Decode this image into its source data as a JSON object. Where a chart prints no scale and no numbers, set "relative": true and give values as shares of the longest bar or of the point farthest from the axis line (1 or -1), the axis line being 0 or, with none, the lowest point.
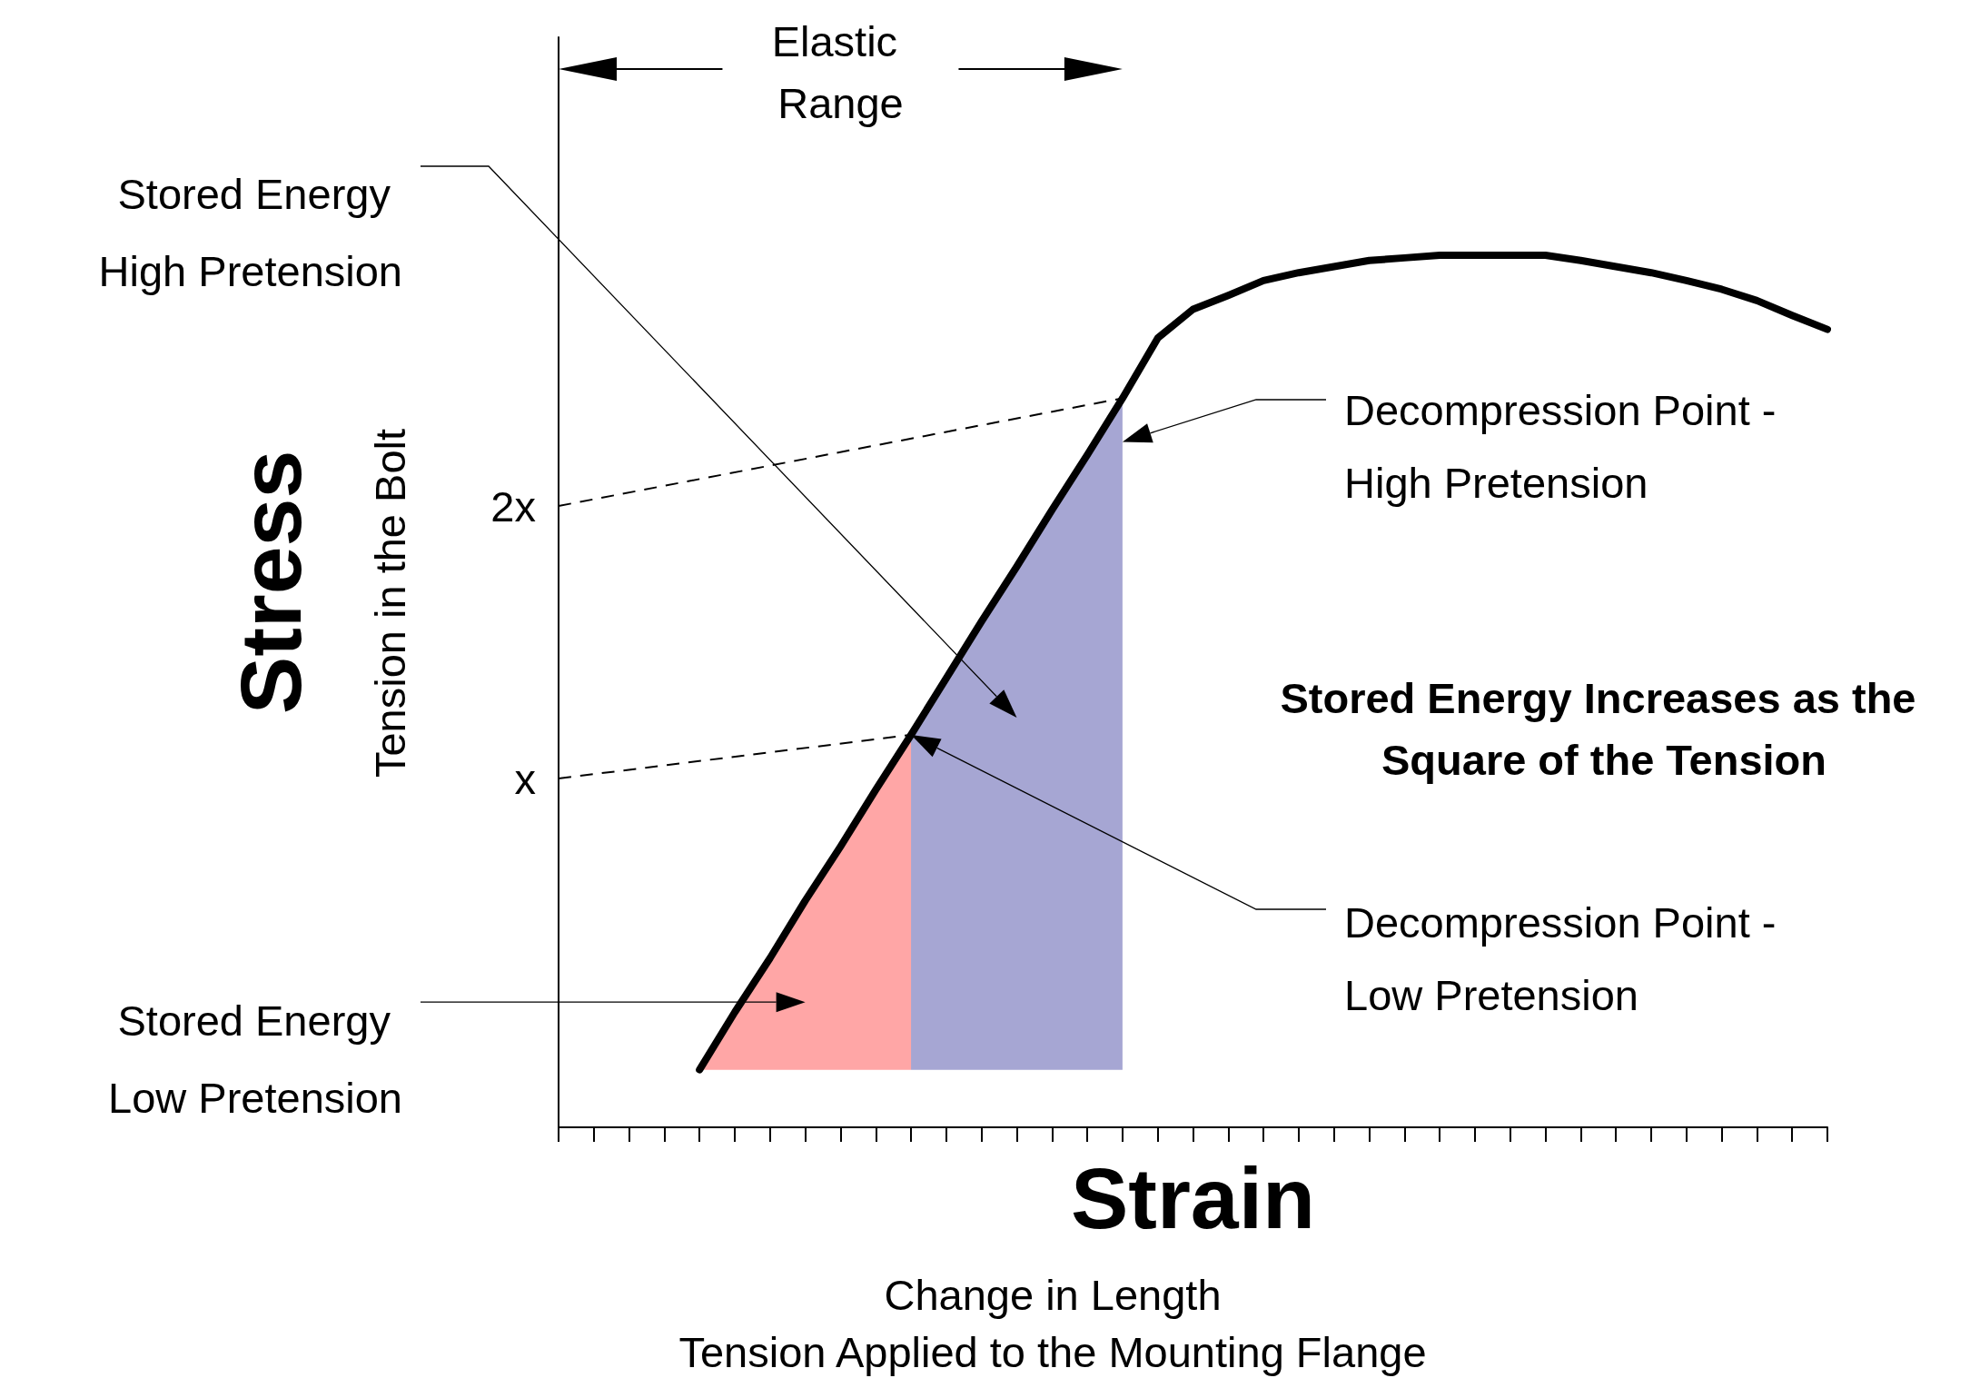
{
  "chart_data": {
    "type": "line",
    "xlabel": "Strain",
    "ylabel": "Stress",
    "relative": true,
    "categories": [
      null,
      null,
      null,
      null,
      null,
      null,
      null,
      null,
      null,
      null,
      null,
      null,
      null,
      null,
      null,
      null,
      null,
      null,
      null,
      null,
      null,
      null,
      null,
      null,
      null,
      null,
      null,
      null,
      null,
      null,
      null,
      null,
      null,
      null,
      null,
      null,
      null
    ],
    "grid": false,
    "series": [
      {
        "type": "area",
        "color": "#ff0000",
        "values": [
          null,
          null,
          null,
          null,
          0.066,
          0.132,
          0.194,
          0.26,
          0.322,
          0.387,
          0.45,
          null,
          null,
          null,
          null,
          null,
          null,
          null,
          null,
          null,
          null,
          null,
          null,
          null,
          null,
          null,
          null,
          null,
          null,
          null,
          null,
          null,
          null,
          null,
          null,
          null,
          null
        ]
      },
      {
        "type": "area",
        "color": "#000080",
        "values": [
          null,
          null,
          null,
          null,
          null,
          null,
          null,
          null,
          null,
          null,
          0.45,
          0.515,
          0.58,
          0.643,
          0.708,
          0.771,
          0.836,
          null,
          null,
          null,
          null,
          null,
          null,
          null,
          null,
          null,
          null,
          null,
          null,
          null,
          null,
          null,
          null,
          null,
          null,
          null,
          null
        ]
      },
      {
        "color": "#000000",
        "values": [
          null,
          null,
          null,
          null,
          0.066,
          0.132,
          0.194,
          0.26,
          0.322,
          0.387,
          0.45,
          0.515,
          0.58,
          0.643,
          0.708,
          0.771,
          0.836,
          0.905,
          0.938,
          0.954,
          0.971,
          0.98,
          0.987,
          0.994,
          0.997,
          1,
          1,
          1,
          1,
          0.994,
          0.987,
          0.98,
          0.971,
          0.961,
          0.948,
          0.931,
          0.915
        ]
      }
    ],
    "annotations": [
      "Elastic Range",
      "Stored Energy High Pretension",
      "Stored Energy Low Pretension",
      "Decompression Point - High Pretension",
      "Decompression Point - Low Pretension",
      "Stored Energy Increases as the Square of the Tension",
      "Tension in the Bolt",
      "Change in Length",
      "Tension Applied to the Mounting Flange",
      "x",
      "2x"
    ]
  }
}
